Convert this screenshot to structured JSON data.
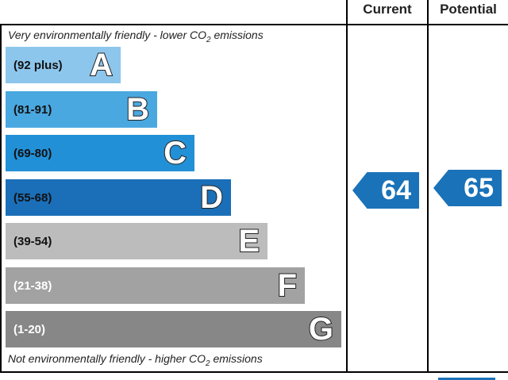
{
  "headers": {
    "current": "Current",
    "potential": "Potential"
  },
  "top_caption": {
    "text": "Very environmentally friendly - lower C",
    "o": "O",
    "sub": "2",
    "tail": " emissions"
  },
  "bottom_caption": {
    "text": "Not environmentally friendly - higher C",
    "o": "O",
    "sub": "2",
    "tail": " emissions"
  },
  "colors": {
    "A": "#8dc6ec",
    "B": "#4aa8e0",
    "C": "#2290d6",
    "D": "#1a6fb8",
    "E": "#bcbcbc",
    "F": "#a2a2a2",
    "G": "#878787",
    "rating": "#1a72b8"
  },
  "chart_data": {
    "type": "bar",
    "bands": [
      {
        "letter": "A",
        "range": "(92 plus)",
        "min": 92,
        "max": 100
      },
      {
        "letter": "B",
        "range": "(81-91)",
        "min": 81,
        "max": 91
      },
      {
        "letter": "C",
        "range": "(69-80)",
        "min": 69,
        "max": 80
      },
      {
        "letter": "D",
        "range": "(55-68)",
        "min": 55,
        "max": 68
      },
      {
        "letter": "E",
        "range": "(39-54)",
        "min": 39,
        "max": 54
      },
      {
        "letter": "F",
        "range": "(21-38)",
        "min": 21,
        "max": 38
      },
      {
        "letter": "G",
        "range": "(1-20)",
        "min": 1,
        "max": 20
      }
    ],
    "current": {
      "value": 64,
      "band": "D"
    },
    "potential": {
      "value": 65,
      "band": "D"
    }
  }
}
